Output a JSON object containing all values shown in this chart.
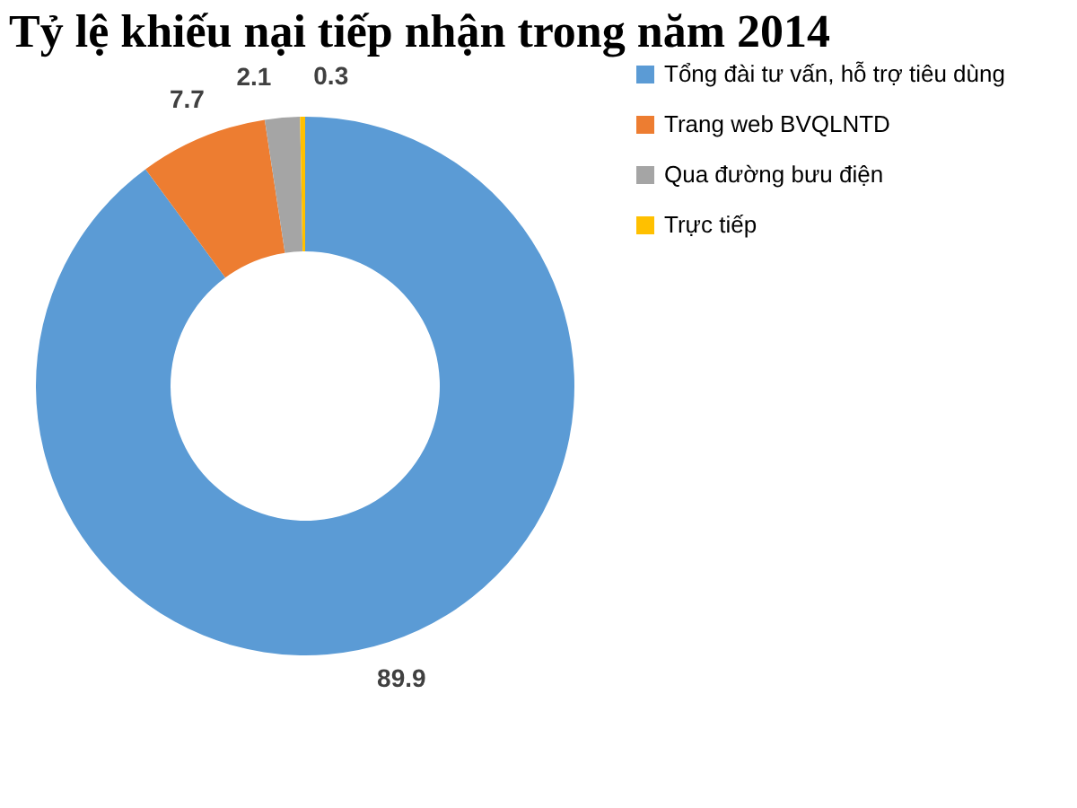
{
  "chart_data": {
    "type": "donut",
    "title": "Tỷ lệ khiếu nại tiếp nhận trong năm 2014",
    "categories": [
      "Tổng đài tư vấn, hỗ trợ tiêu dùng",
      "Trang web BVQLNTD",
      "Qua đường bưu điện",
      "Trực tiếp"
    ],
    "values": [
      89.9,
      7.7,
      2.1,
      0.3
    ],
    "colors": [
      "#5b9bd5",
      "#ed7d31",
      "#a5a5a5",
      "#ffc000"
    ],
    "data_labels": true,
    "legend": "right"
  }
}
